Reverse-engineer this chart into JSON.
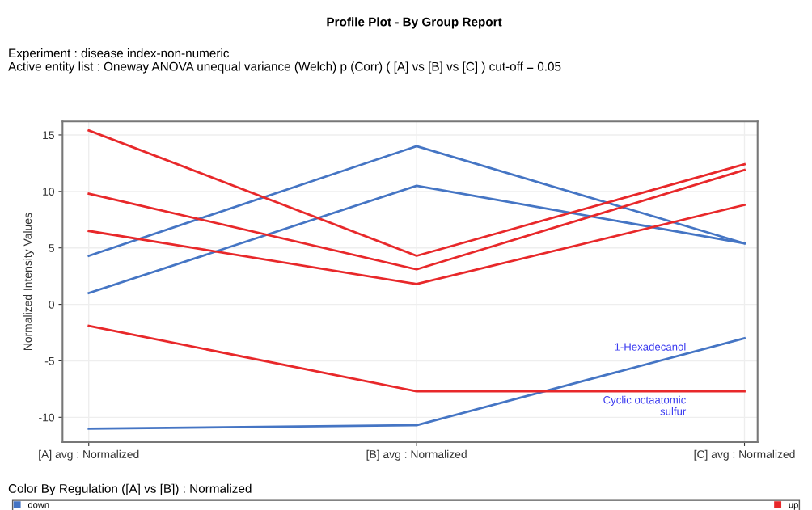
{
  "chart_data": {
    "type": "line",
    "title": "Profile Plot - By Group Report",
    "subtitle": "Experiment : disease index-non-numeric\nActive entity list : Oneway ANOVA unequal variance (Welch) p (Corr) ( [A] vs [B] vs [C] ) cut-off = 0.05",
    "ylabel": "Normalized Intensity Values",
    "legend_title": "Color By Regulation ([A] vs [B]) : Normalized",
    "categories": [
      "[A] avg : Normalized",
      "[B] avg : Normalized",
      "[C] avg : Normalized"
    ],
    "series": [
      {
        "name": "down",
        "color": "#4575c4",
        "values": [
          4.3,
          14.0,
          5.4
        ]
      },
      {
        "color": "#4575c4",
        "values": [
          1.0,
          10.5,
          5.4
        ]
      },
      {
        "name": "1-Hexadecanol",
        "color": "#4575c4",
        "values": [
          -11.0,
          -10.7,
          -3.0
        ]
      },
      {
        "name": "up",
        "color": "#e8282a",
        "values": [
          15.4,
          4.3,
          12.4
        ]
      },
      {
        "color": "#e8282a",
        "values": [
          9.8,
          3.1,
          11.9
        ]
      },
      {
        "color": "#e8282a",
        "values": [
          6.5,
          1.8,
          8.8
        ]
      },
      {
        "name": "Cyclic octaatomic\nsulfur",
        "color": "#e8282a",
        "values": [
          -1.9,
          -7.7,
          -7.7
        ]
      }
    ],
    "ylim": [
      -12.2,
      16.2
    ],
    "yticks": [
      -10,
      -5,
      0,
      5,
      10,
      15
    ],
    "grid": true,
    "legend": "bottom",
    "marker": "none",
    "line_style": "solid"
  }
}
